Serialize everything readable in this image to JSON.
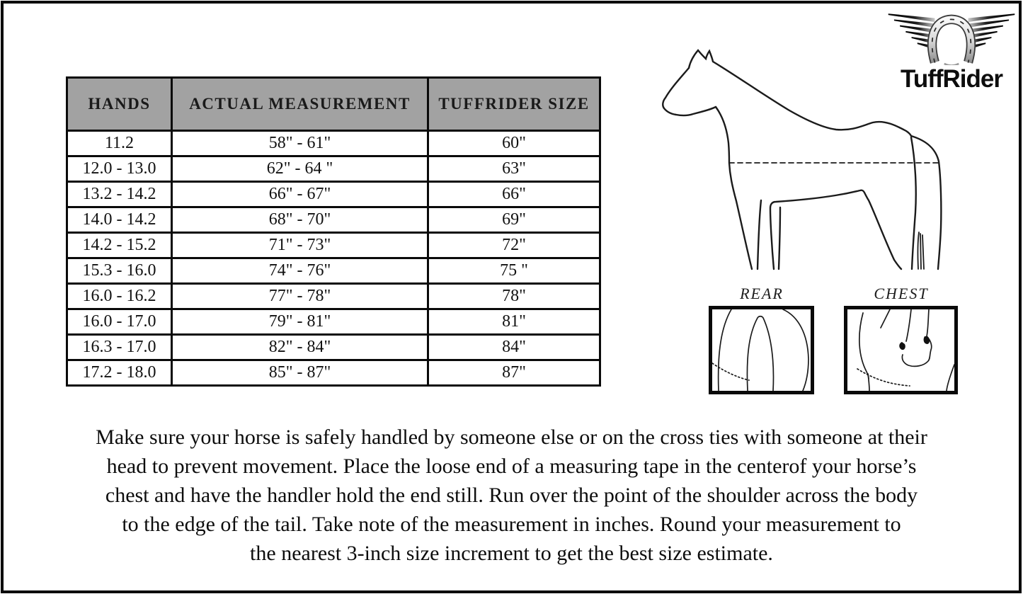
{
  "logo": {
    "brand": "TuffRider",
    "icon": "winged-horseshoe"
  },
  "size_chart": {
    "columns": [
      "HANDS",
      "ACTUAL MEASUREMENT",
      "TUFFRIDER SIZE"
    ],
    "rows": [
      [
        "11.2",
        "58\" - 61\"",
        "60\""
      ],
      [
        "12.0 - 13.0",
        "62\" - 64 \"",
        "63\""
      ],
      [
        "13.2 - 14.2",
        "66\" - 67\"",
        "66\""
      ],
      [
        "14.0 - 14.2",
        "68\" - 70\"",
        "69\""
      ],
      [
        "14.2 - 15.2",
        "71\" - 73\"",
        "72\""
      ],
      [
        "15.3 - 16.0",
        "74\" - 76\"",
        "75 \""
      ],
      [
        "16.0 - 16.2",
        "77\" - 78\"",
        "78\""
      ],
      [
        "16.0 - 17.0",
        "79\" - 81\"",
        "81\""
      ],
      [
        "16.3 - 17.0",
        "82\" - 84\"",
        "84\""
      ],
      [
        "17.2 - 18.0",
        "85\" - 87\"",
        "87\""
      ]
    ],
    "header_bg": "#a2a2a2",
    "border_color": "#0a0a0a"
  },
  "diagrams": {
    "rear_label": "REAR",
    "chest_label": "CHEST"
  },
  "instructions": {
    "lines": [
      "Make sure your horse is safely handled by someone else or on the cross ties with someone at their",
      "head to prevent movement. Place the loose end of a measuring tape in the centerof your horse’s",
      "chest and have the handler hold the end still. Run over the point of the shoulder across the body",
      "to the edge of the tail. Take note of the measurement in inches. Round your measurement to",
      "the nearest 3-inch size increment to get the best size estimate."
    ]
  }
}
